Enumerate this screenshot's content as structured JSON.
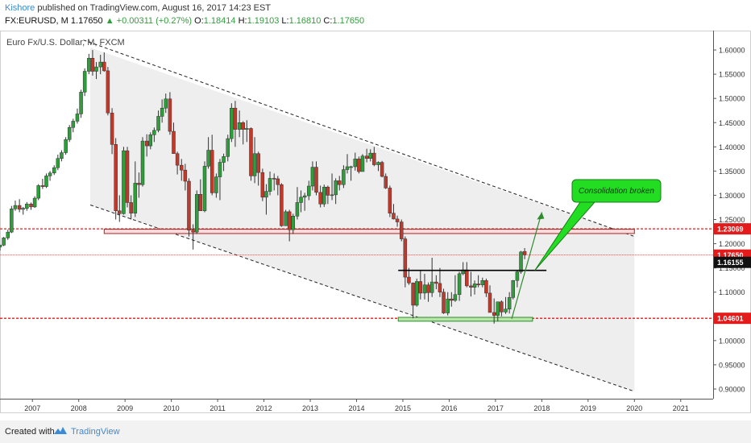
{
  "header": {
    "author": "Kishore",
    "published_text": " published on TradingView.com, August 16, 2017 14:23 EST",
    "symbol": "FX:EURUSD, M",
    "last": "1.17650",
    "change": "▲ +0.00311 (+0.27%)",
    "o_label": "O:",
    "o_val": "1.18414",
    "h_label": "H:",
    "h_val": "1.19103",
    "l_label": "L:",
    "l_val": "1.16810",
    "c_label": "C:",
    "c_val": "1.17650"
  },
  "footer": {
    "created_with": "Created with",
    "brand": "TradingView"
  },
  "colors": {
    "up": "#2e9e3a",
    "down": "#c0392b",
    "level": "#e31b1b",
    "annotation": "#22dd22"
  },
  "chart_data": {
    "type": "candlestick",
    "title": "Euro Fx/U.S. Dollar, M, FXCM",
    "x_axis": {
      "ticks": [
        "2007",
        "2008",
        "2009",
        "2010",
        "2011",
        "2012",
        "2013",
        "2014",
        "2015",
        "2016",
        "2017",
        "2018",
        "2019",
        "2020",
        "2021"
      ],
      "range": [
        2006.3,
        2021.7
      ]
    },
    "y_axis": {
      "ticks": [
        "1.60000",
        "1.55000",
        "1.50000",
        "1.45000",
        "1.40000",
        "1.35000",
        "1.30000",
        "1.25000",
        "1.20000",
        "1.15000",
        "1.10000",
        "1.05000",
        "1.00000",
        "0.95000",
        "0.90000"
      ],
      "range": [
        0.88,
        1.64
      ]
    },
    "price_labels": [
      {
        "text": "1.23069",
        "value": 1.23069,
        "style": "red"
      },
      {
        "text": "1.17650",
        "value": 1.1765,
        "style": "red"
      },
      {
        "text": "1.16155",
        "value": 1.16155,
        "style": "black"
      },
      {
        "text": "1.04601",
        "value": 1.04601,
        "style": "red"
      }
    ],
    "annotation": "Consolidation broken",
    "horizontal_levels": [
      1.23069,
      1.04601
    ],
    "last_price_line": 1.1765,
    "neckline": {
      "from": [
        2014.9,
        1.145
      ],
      "to": [
        2018.1,
        1.145
      ]
    },
    "channel_upper": {
      "from": [
        2008.25,
        1.605
      ],
      "to": [
        2020.0,
        1.215
      ]
    },
    "channel_lower": {
      "from": [
        2008.25,
        1.28
      ],
      "to": [
        2020.0,
        0.895
      ]
    },
    "resistance_box": {
      "from": [
        2008.55,
        1.23
      ],
      "to": [
        2020.0,
        1.221
      ]
    },
    "support_box": {
      "from": [
        2014.9,
        1.048
      ],
      "to": [
        2017.8,
        1.04
      ]
    },
    "candles": [
      [
        2006.3,
        1.193,
        1.198,
        1.186,
        1.197
      ],
      [
        2006.38,
        1.197,
        1.214,
        1.195,
        1.212
      ],
      [
        2006.47,
        1.212,
        1.229,
        1.208,
        1.224
      ],
      [
        2006.55,
        1.224,
        1.278,
        1.222,
        1.272
      ],
      [
        2006.63,
        1.272,
        1.289,
        1.268,
        1.279
      ],
      [
        2006.72,
        1.279,
        1.292,
        1.265,
        1.271
      ],
      [
        2006.8,
        1.271,
        1.276,
        1.26,
        1.273
      ],
      [
        2006.88,
        1.273,
        1.286,
        1.268,
        1.282
      ],
      [
        2006.97,
        1.282,
        1.285,
        1.27,
        1.276
      ],
      [
        2007.05,
        1.276,
        1.298,
        1.274,
        1.294
      ],
      [
        2007.13,
        1.294,
        1.323,
        1.29,
        1.32
      ],
      [
        2007.22,
        1.32,
        1.334,
        1.313,
        1.318
      ],
      [
        2007.3,
        1.318,
        1.345,
        1.315,
        1.34
      ],
      [
        2007.38,
        1.34,
        1.35,
        1.33,
        1.346
      ],
      [
        2007.47,
        1.346,
        1.362,
        1.342,
        1.357
      ],
      [
        2007.55,
        1.357,
        1.384,
        1.352,
        1.376
      ],
      [
        2007.63,
        1.376,
        1.393,
        1.37,
        1.388
      ],
      [
        2007.72,
        1.388,
        1.42,
        1.384,
        1.415
      ],
      [
        2007.8,
        1.415,
        1.445,
        1.41,
        1.44
      ],
      [
        2007.88,
        1.44,
        1.458,
        1.43,
        1.453
      ],
      [
        2007.97,
        1.453,
        1.479,
        1.448,
        1.468
      ],
      [
        2008.05,
        1.468,
        1.518,
        1.46,
        1.513
      ],
      [
        2008.13,
        1.513,
        1.562,
        1.505,
        1.556
      ],
      [
        2008.22,
        1.556,
        1.592,
        1.55,
        1.583
      ],
      [
        2008.3,
        1.583,
        1.6,
        1.547,
        1.556
      ],
      [
        2008.38,
        1.556,
        1.575,
        1.54,
        1.565
      ],
      [
        2008.47,
        1.565,
        1.59,
        1.55,
        1.575
      ],
      [
        2008.55,
        1.575,
        1.595,
        1.555,
        1.557
      ],
      [
        2008.63,
        1.557,
        1.565,
        1.465,
        1.47
      ],
      [
        2008.72,
        1.47,
        1.48,
        1.385,
        1.405
      ],
      [
        2008.8,
        1.405,
        1.418,
        1.25,
        1.268
      ],
      [
        2008.88,
        1.268,
        1.3,
        1.245,
        1.262
      ],
      [
        2008.97,
        1.262,
        1.4,
        1.26,
        1.392
      ],
      [
        2009.05,
        1.392,
        1.4,
        1.275,
        1.285
      ],
      [
        2009.13,
        1.285,
        1.3,
        1.25,
        1.263
      ],
      [
        2009.22,
        1.263,
        1.37,
        1.255,
        1.325
      ],
      [
        2009.3,
        1.325,
        1.347,
        1.295,
        1.322
      ],
      [
        2009.38,
        1.322,
        1.42,
        1.318,
        1.412
      ],
      [
        2009.47,
        1.412,
        1.426,
        1.38,
        1.402
      ],
      [
        2009.55,
        1.402,
        1.43,
        1.395,
        1.425
      ],
      [
        2009.63,
        1.425,
        1.44,
        1.41,
        1.434
      ],
      [
        2009.72,
        1.434,
        1.475,
        1.43,
        1.463
      ],
      [
        2009.8,
        1.463,
        1.498,
        1.45,
        1.48
      ],
      [
        2009.88,
        1.48,
        1.51,
        1.47,
        1.499
      ],
      [
        2009.97,
        1.499,
        1.513,
        1.425,
        1.432
      ],
      [
        2010.05,
        1.432,
        1.45,
        1.386,
        1.386
      ],
      [
        2010.13,
        1.386,
        1.39,
        1.343,
        1.362
      ],
      [
        2010.22,
        1.362,
        1.375,
        1.33,
        1.352
      ],
      [
        2010.3,
        1.352,
        1.365,
        1.31,
        1.329
      ],
      [
        2010.38,
        1.329,
        1.335,
        1.215,
        1.228
      ],
      [
        2010.47,
        1.228,
        1.24,
        1.188,
        1.224
      ],
      [
        2010.55,
        1.224,
        1.31,
        1.22,
        1.302
      ],
      [
        2010.63,
        1.302,
        1.333,
        1.27,
        1.268
      ],
      [
        2010.72,
        1.268,
        1.37,
        1.265,
        1.36
      ],
      [
        2010.8,
        1.36,
        1.42,
        1.355,
        1.393
      ],
      [
        2010.88,
        1.393,
        1.425,
        1.3,
        1.305
      ],
      [
        2010.97,
        1.305,
        1.345,
        1.295,
        1.338
      ],
      [
        2011.05,
        1.338,
        1.375,
        1.29,
        1.368
      ],
      [
        2011.13,
        1.368,
        1.386,
        1.35,
        1.38
      ],
      [
        2011.22,
        1.38,
        1.425,
        1.37,
        1.417
      ],
      [
        2011.3,
        1.417,
        1.49,
        1.41,
        1.48
      ],
      [
        2011.38,
        1.48,
        1.495,
        1.4,
        1.436
      ],
      [
        2011.47,
        1.436,
        1.475,
        1.42,
        1.45
      ],
      [
        2011.55,
        1.45,
        1.453,
        1.405,
        1.436
      ],
      [
        2011.63,
        1.436,
        1.455,
        1.41,
        1.438
      ],
      [
        2011.72,
        1.438,
        1.44,
        1.33,
        1.34
      ],
      [
        2011.8,
        1.34,
        1.42,
        1.325,
        1.386
      ],
      [
        2011.88,
        1.386,
        1.39,
        1.32,
        1.347
      ],
      [
        2011.97,
        1.347,
        1.355,
        1.288,
        1.296
      ],
      [
        2012.05,
        1.296,
        1.323,
        1.26,
        1.308
      ],
      [
        2012.13,
        1.308,
        1.349,
        1.3,
        1.335
      ],
      [
        2012.22,
        1.335,
        1.345,
        1.31,
        1.334
      ],
      [
        2012.3,
        1.334,
        1.34,
        1.3,
        1.322
      ],
      [
        2012.38,
        1.322,
        1.325,
        1.235,
        1.237
      ],
      [
        2012.47,
        1.237,
        1.27,
        1.24,
        1.266
      ],
      [
        2012.55,
        1.266,
        1.27,
        1.205,
        1.229
      ],
      [
        2012.63,
        1.229,
        1.262,
        1.22,
        1.257
      ],
      [
        2012.72,
        1.257,
        1.317,
        1.25,
        1.285
      ],
      [
        2012.8,
        1.285,
        1.31,
        1.265,
        1.296
      ],
      [
        2012.88,
        1.296,
        1.305,
        1.268,
        1.299
      ],
      [
        2012.97,
        1.299,
        1.33,
        1.29,
        1.319
      ],
      [
        2013.05,
        1.319,
        1.37,
        1.31,
        1.358
      ],
      [
        2013.13,
        1.358,
        1.37,
        1.3,
        1.306
      ],
      [
        2013.22,
        1.306,
        1.32,
        1.275,
        1.282
      ],
      [
        2013.3,
        1.282,
        1.322,
        1.276,
        1.317
      ],
      [
        2013.38,
        1.317,
        1.32,
        1.282,
        1.3
      ],
      [
        2013.47,
        1.3,
        1.345,
        1.29,
        1.301
      ],
      [
        2013.55,
        1.301,
        1.335,
        1.282,
        1.33
      ],
      [
        2013.63,
        1.33,
        1.34,
        1.31,
        1.322
      ],
      [
        2013.72,
        1.322,
        1.362,
        1.315,
        1.353
      ],
      [
        2013.8,
        1.353,
        1.385,
        1.345,
        1.359
      ],
      [
        2013.88,
        1.359,
        1.361,
        1.33,
        1.359
      ],
      [
        2013.97,
        1.359,
        1.388,
        1.351,
        1.375
      ],
      [
        2014.05,
        1.375,
        1.38,
        1.345,
        1.349
      ],
      [
        2014.13,
        1.349,
        1.385,
        1.35,
        1.381
      ],
      [
        2014.22,
        1.381,
        1.396,
        1.368,
        1.376
      ],
      [
        2014.3,
        1.376,
        1.395,
        1.37,
        1.387
      ],
      [
        2014.38,
        1.387,
        1.4,
        1.36,
        1.363
      ],
      [
        2014.47,
        1.363,
        1.37,
        1.35,
        1.368
      ],
      [
        2014.55,
        1.368,
        1.371,
        1.337,
        1.339
      ],
      [
        2014.63,
        1.339,
        1.345,
        1.313,
        1.315
      ],
      [
        2014.72,
        1.315,
        1.32,
        1.255,
        1.263
      ],
      [
        2014.8,
        1.263,
        1.282,
        1.25,
        1.251
      ],
      [
        2014.88,
        1.251,
        1.258,
        1.235,
        1.245
      ],
      [
        2014.97,
        1.245,
        1.25,
        1.205,
        1.21
      ],
      [
        2015.05,
        1.21,
        1.215,
        1.11,
        1.131
      ],
      [
        2015.13,
        1.131,
        1.15,
        1.115,
        1.119
      ],
      [
        2015.22,
        1.119,
        1.12,
        1.046,
        1.073
      ],
      [
        2015.3,
        1.073,
        1.128,
        1.07,
        1.122
      ],
      [
        2015.38,
        1.122,
        1.146,
        1.085,
        1.098
      ],
      [
        2015.47,
        1.098,
        1.138,
        1.085,
        1.115
      ],
      [
        2015.55,
        1.115,
        1.12,
        1.08,
        1.099
      ],
      [
        2015.63,
        1.099,
        1.171,
        1.09,
        1.121
      ],
      [
        2015.72,
        1.121,
        1.135,
        1.106,
        1.118
      ],
      [
        2015.8,
        1.118,
        1.15,
        1.09,
        1.1
      ],
      [
        2015.88,
        1.1,
        1.107,
        1.055,
        1.057
      ],
      [
        2015.97,
        1.057,
        1.1,
        1.052,
        1.086
      ],
      [
        2016.05,
        1.086,
        1.1,
        1.07,
        1.083
      ],
      [
        2016.13,
        1.083,
        1.135,
        1.08,
        1.095
      ],
      [
        2016.22,
        1.095,
        1.142,
        1.082,
        1.138
      ],
      [
        2016.3,
        1.138,
        1.162,
        1.135,
        1.146
      ],
      [
        2016.38,
        1.146,
        1.162,
        1.11,
        1.113
      ],
      [
        2016.47,
        1.113,
        1.142,
        1.091,
        1.11
      ],
      [
        2016.55,
        1.11,
        1.124,
        1.095,
        1.117
      ],
      [
        2016.63,
        1.117,
        1.135,
        1.11,
        1.115
      ],
      [
        2016.72,
        1.115,
        1.13,
        1.11,
        1.124
      ],
      [
        2016.8,
        1.124,
        1.128,
        1.09,
        1.098
      ],
      [
        2016.88,
        1.098,
        1.114,
        1.058,
        1.058
      ],
      [
        2016.97,
        1.058,
        1.087,
        1.035,
        1.052
      ],
      [
        2017.05,
        1.052,
        1.08,
        1.04,
        1.08
      ],
      [
        2017.13,
        1.08,
        1.083,
        1.05,
        1.059
      ],
      [
        2017.22,
        1.059,
        1.09,
        1.055,
        1.065
      ],
      [
        2017.3,
        1.065,
        1.1,
        1.056,
        1.089
      ],
      [
        2017.38,
        1.089,
        1.125,
        1.085,
        1.124
      ],
      [
        2017.47,
        1.124,
        1.145,
        1.11,
        1.142
      ],
      [
        2017.55,
        1.142,
        1.185,
        1.138,
        1.183
      ],
      [
        2017.63,
        1.184,
        1.191,
        1.168,
        1.177
      ]
    ]
  }
}
